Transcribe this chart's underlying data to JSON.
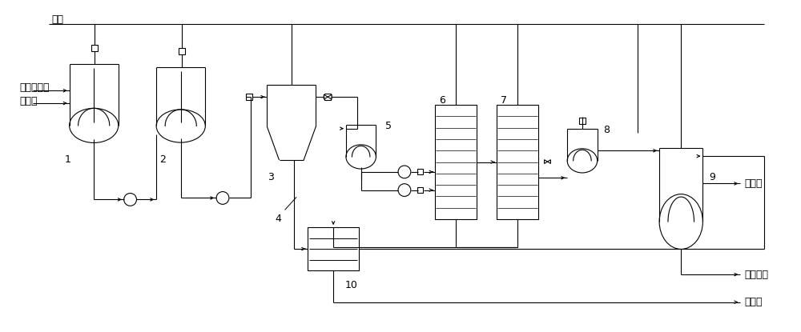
{
  "bg_color": "#ffffff",
  "line_color": "#000000",
  "labels": {
    "nitrogen": "氮气",
    "coal_residue": "煤液化残渣",
    "solvent_in": "萃取剂",
    "solvent_out": "萃取剂",
    "refined_asphalt": "精制沥青",
    "dry_residue": "干滤渣"
  },
  "figsize": [
    10.0,
    4.15
  ],
  "dpi": 100
}
